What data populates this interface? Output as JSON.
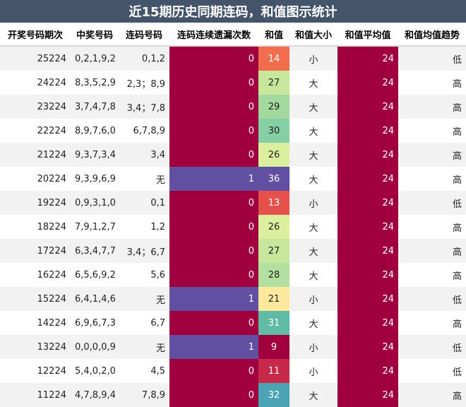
{
  "title": "近15期历史同期连码，和值图示统计",
  "headers": [
    "开奖号码期次",
    "中奖号码",
    "连码号码",
    "连码连续遗漏次数",
    "和值",
    "和值大小",
    "和值平均值",
    "和值均值趋势"
  ],
  "colors": {
    "miss_zero": "#a1003f",
    "miss_one": "#6150a2",
    "avg_bg": "#a1003f"
  },
  "rows": [
    {
      "period": "25224",
      "numbers": "0,2,1,9,2",
      "lian": "0,1,2",
      "miss": "0",
      "sum": "14",
      "size": "小",
      "avg": "24",
      "trend": "低",
      "sum_color": "#f26d4e",
      "sum_text": "#ffffff"
    },
    {
      "period": "24224",
      "numbers": "8,3,5,2,9",
      "lian": "2,3；8,9",
      "miss": "0",
      "sum": "27",
      "size": "大",
      "avg": "24",
      "trend": "高",
      "sum_color": "#c6e79c",
      "sum_text": "#222222"
    },
    {
      "period": "23224",
      "numbers": "3,7,4,7,8",
      "lian": "3,4；7,8",
      "miss": "0",
      "sum": "29",
      "size": "大",
      "avg": "24",
      "trend": "高",
      "sum_color": "#a3d99e",
      "sum_text": "#222222"
    },
    {
      "period": "22224",
      "numbers": "8,9,7,6,0",
      "lian": "6,7,8,9",
      "miss": "0",
      "sum": "30",
      "size": "大",
      "avg": "24",
      "trend": "高",
      "sum_color": "#86cfa5",
      "sum_text": "#222222"
    },
    {
      "period": "21224",
      "numbers": "9,3,7,3,4",
      "lian": "3,4",
      "miss": "0",
      "sum": "26",
      "size": "大",
      "avg": "24",
      "trend": "高",
      "sum_color": "#dcef9e",
      "sum_text": "#222222"
    },
    {
      "period": "20224",
      "numbers": "9,3,9,6,9",
      "lian": "无",
      "miss": "1",
      "sum": "36",
      "size": "大",
      "avg": "24",
      "trend": "高",
      "sum_color": "#6150a2",
      "sum_text": "#ffffff"
    },
    {
      "period": "19224",
      "numbers": "0,9,3,1,0",
      "lian": "0,1",
      "miss": "0",
      "sum": "13",
      "size": "小",
      "avg": "24",
      "trend": "低",
      "sum_color": "#e5504a",
      "sum_text": "#ffffff"
    },
    {
      "period": "18224",
      "numbers": "7,9,1,2,7",
      "lian": "1,2",
      "miss": "0",
      "sum": "26",
      "size": "大",
      "avg": "24",
      "trend": "高",
      "sum_color": "#dcef9e",
      "sum_text": "#222222"
    },
    {
      "period": "17224",
      "numbers": "6,3,4,7,7",
      "lian": "3,4；6,7",
      "miss": "0",
      "sum": "27",
      "size": "大",
      "avg": "24",
      "trend": "高",
      "sum_color": "#c6e79c",
      "sum_text": "#222222"
    },
    {
      "period": "16224",
      "numbers": "6,5,6,9,2",
      "lian": "5,6",
      "miss": "0",
      "sum": "28",
      "size": "大",
      "avg": "24",
      "trend": "高",
      "sum_color": "#b3e0a0",
      "sum_text": "#222222"
    },
    {
      "period": "15224",
      "numbers": "6,4,1,4,6",
      "lian": "无",
      "miss": "1",
      "sum": "21",
      "size": "小",
      "avg": "24",
      "trend": "低",
      "sum_color": "#fde89b",
      "sum_text": "#222222"
    },
    {
      "period": "14224",
      "numbers": "6,9,6,7,3",
      "lian": "6,7",
      "miss": "0",
      "sum": "31",
      "size": "大",
      "avg": "24",
      "trend": "高",
      "sum_color": "#5fbba5",
      "sum_text": "#ffffff"
    },
    {
      "period": "13224",
      "numbers": "0,0,0,0,9",
      "lian": "无",
      "miss": "1",
      "sum": "9",
      "size": "小",
      "avg": "24",
      "trend": "低",
      "sum_color": "#a1003f",
      "sum_text": "#ffffff"
    },
    {
      "period": "12224",
      "numbers": "5,4,0,2,0",
      "lian": "4,5",
      "miss": "0",
      "sum": "11",
      "size": "小",
      "avg": "24",
      "trend": "低",
      "sum_color": "#c8294a",
      "sum_text": "#ffffff"
    },
    {
      "period": "11224",
      "numbers": "4,7,8,9,4",
      "lian": "7,8,9",
      "miss": "0",
      "sum": "32",
      "size": "大",
      "avg": "24",
      "trend": "高",
      "sum_color": "#4aa4b3",
      "sum_text": "#ffffff"
    }
  ]
}
